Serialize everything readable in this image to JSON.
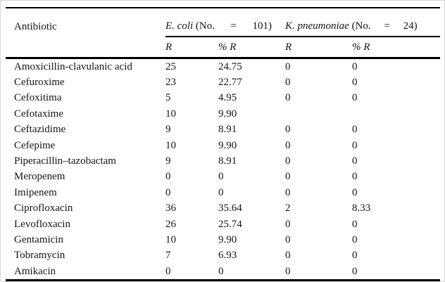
{
  "page": {
    "background": "#ffffff",
    "text_color": "#141414",
    "rule_color": "#000000",
    "frame_color": "#d6d6d6"
  },
  "table": {
    "header": {
      "antibiotic_label": "Antibiotic",
      "groups": [
        {
          "species": "E. coli",
          "tail": " (No.      =      101)"
        },
        {
          "species": "K. pneumoniae",
          "tail": " (No.     =     24)"
        }
      ],
      "subheaders": [
        "R",
        "% R",
        "R",
        "% R"
      ]
    },
    "rows": [
      {
        "antibiotic": "Amoxicillin-clavulanic acid",
        "values": [
          "25",
          "24.75",
          "0",
          "0"
        ]
      },
      {
        "antibiotic": "Cefuroxime",
        "values": [
          "23",
          "22.77",
          "0",
          "0"
        ]
      },
      {
        "antibiotic": "Cefoxitima",
        "values": [
          "5",
          "4.95",
          "0",
          "0"
        ]
      },
      {
        "antibiotic": "Cefotaxime",
        "values": [
          "10",
          "9.90",
          "",
          ""
        ]
      },
      {
        "antibiotic": "Ceftazidime",
        "values": [
          "9",
          "8.91",
          "0",
          "0"
        ]
      },
      {
        "antibiotic": "Cefepime",
        "values": [
          "10",
          "9.90",
          "0",
          "0"
        ]
      },
      {
        "antibiotic": "Piperacillin–tazobactam",
        "values": [
          "9",
          "8.91",
          "0",
          "0"
        ]
      },
      {
        "antibiotic": "Meropenem",
        "values": [
          "0",
          "0",
          "0",
          "0"
        ]
      },
      {
        "antibiotic": "Imipenem",
        "values": [
          "0",
          "0",
          "0",
          "0"
        ]
      },
      {
        "antibiotic": "Ciprofloxacin",
        "values": [
          "36",
          "35.64",
          "2",
          "8.33"
        ]
      },
      {
        "antibiotic": "Levofloxacin",
        "values": [
          "26",
          "25.74",
          "0",
          "0"
        ]
      },
      {
        "antibiotic": "Gentamicin",
        "values": [
          "10",
          "9.90",
          "0",
          "0"
        ]
      },
      {
        "antibiotic": "Tobramycin",
        "values": [
          "7",
          "6.93",
          "0",
          "0"
        ]
      },
      {
        "antibiotic": "Amikacin",
        "values": [
          "0",
          "0",
          "0",
          "0"
        ]
      }
    ]
  }
}
